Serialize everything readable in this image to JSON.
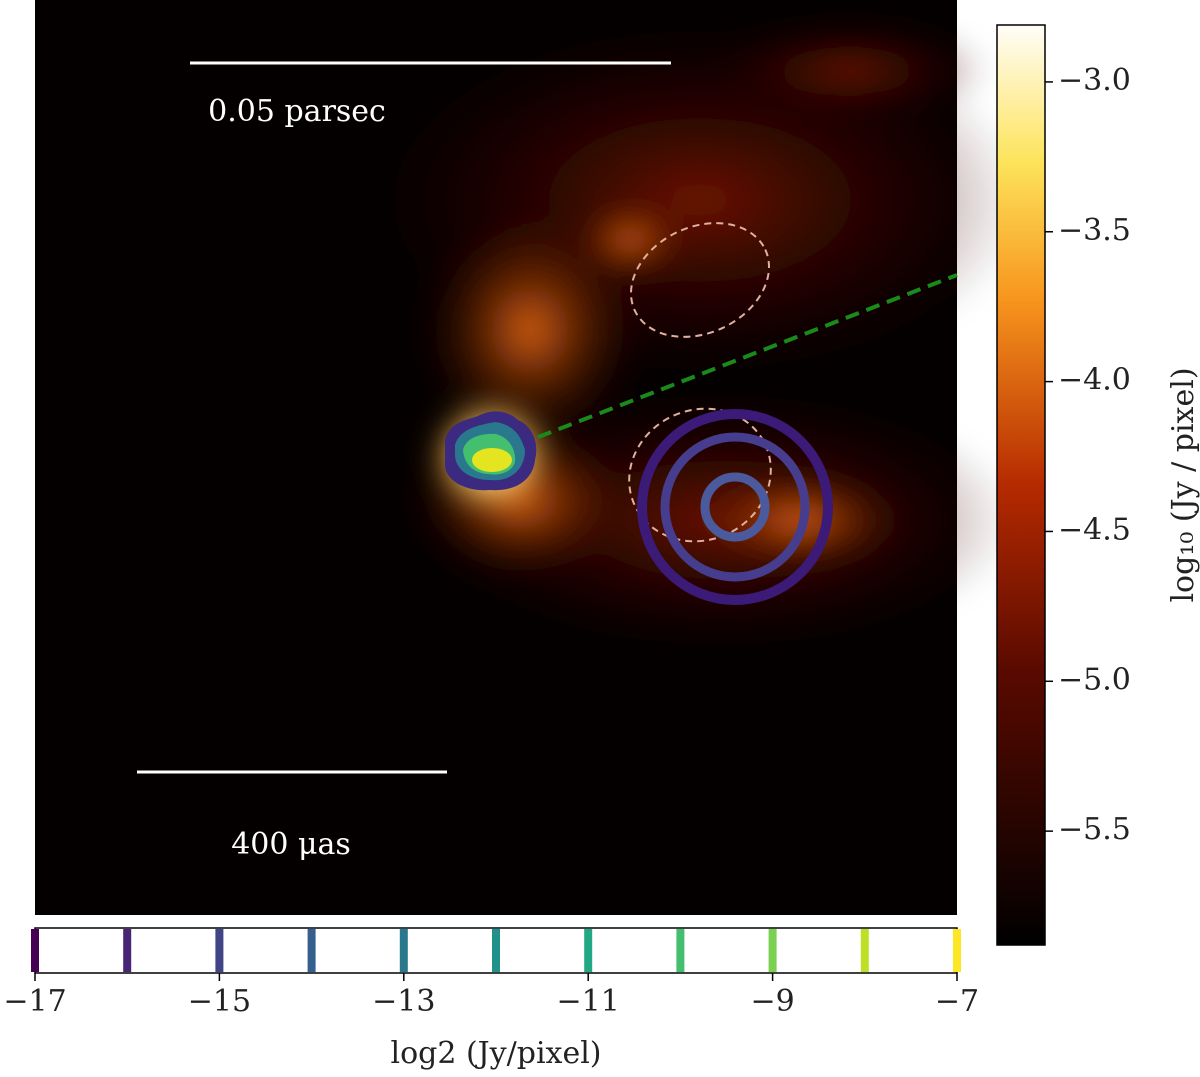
{
  "image": {
    "scale_bars": [
      "0.05 parsec",
      "400 μas"
    ]
  },
  "colorbar": {
    "label": "log₁₀ (Jy / pixel)",
    "lim": [
      -5.88,
      -2.81
    ],
    "ticks": [
      {
        "value": -3.0,
        "label": "−3.0"
      },
      {
        "value": -3.5,
        "label": "−3.5"
      },
      {
        "value": -4.0,
        "label": "−4.0"
      },
      {
        "value": -4.5,
        "label": "−4.5"
      },
      {
        "value": -5.0,
        "label": "−5.0"
      },
      {
        "value": -5.5,
        "label": "−5.5"
      }
    ]
  },
  "contour_colorbar": {
    "label": "log2 (Jy/pixel)",
    "lim": [
      -17,
      -7
    ],
    "ticks": [
      {
        "value": -17,
        "label": "−17"
      },
      {
        "value": -15,
        "label": "−15"
      },
      {
        "value": -13,
        "label": "−13"
      },
      {
        "value": -11,
        "label": "−11"
      },
      {
        "value": -9,
        "label": "−9"
      },
      {
        "value": -7,
        "label": "−7"
      }
    ],
    "levels": [
      -17,
      -16,
      -15,
      -14,
      -13,
      -12,
      -11,
      -10,
      -9,
      -8,
      -7
    ],
    "colors": [
      "#440154",
      "#482475",
      "#414487",
      "#355f8d",
      "#2a788e",
      "#21918c",
      "#22a884",
      "#44bf70",
      "#7ad151",
      "#bddf26",
      "#fde725"
    ]
  }
}
